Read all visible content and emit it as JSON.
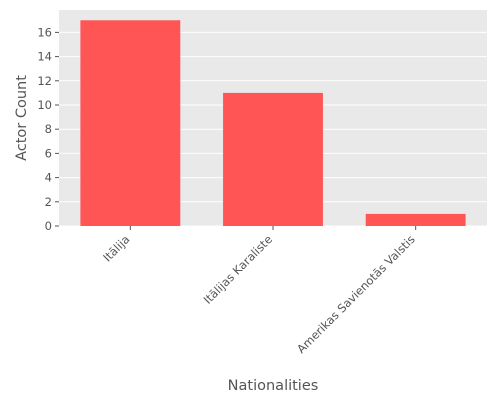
{
  "chart_data": {
    "type": "bar",
    "title": "",
    "xlabel": "Nationalities",
    "ylabel": "Actor Count",
    "categories": [
      "Itālija",
      "Itālijas Karaliste",
      "Amerikas Savienotās Valstis"
    ],
    "values": [
      17,
      11,
      1
    ],
    "ylim": [
      0,
      17.85
    ],
    "yticks": [
      0,
      2,
      4,
      6,
      8,
      10,
      12,
      14,
      16
    ],
    "grid": true,
    "legend": "none",
    "colors": {
      "bar": "#ff5555",
      "plot_background": "#e9e9e9",
      "grid": "#ffffff",
      "text": "#555555"
    }
  }
}
